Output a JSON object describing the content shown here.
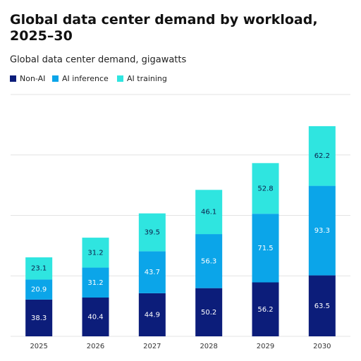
{
  "chart_data": {
    "type": "stacked-bar",
    "title": "Global data center demand by workload, 2025–30",
    "subtitle": "Global data center demand, gigawatts",
    "categories": [
      "2025",
      "2026",
      "2027",
      "2028",
      "2029",
      "2030"
    ],
    "series": [
      {
        "name": "Non-AI",
        "color": "#0c1d7a",
        "label_color": "#ffffff",
        "values": [
          38.3,
          40.4,
          44.9,
          50.2,
          56.2,
          63.5
        ]
      },
      {
        "name": "AI inference",
        "color": "#0ba5e9",
        "label_color": "#ffffff",
        "values": [
          20.9,
          31.2,
          43.7,
          56.3,
          71.5,
          93.3
        ]
      },
      {
        "name": "AI training",
        "color": "#2fe5e0",
        "label_color": "#0c1d4a",
        "values": [
          23.1,
          31.2,
          39.5,
          46.1,
          52.8,
          62.2
        ]
      }
    ],
    "ylim": [
      0,
      252
    ],
    "yticks": [
      0,
      63,
      126,
      189,
      252
    ],
    "grid": true
  }
}
